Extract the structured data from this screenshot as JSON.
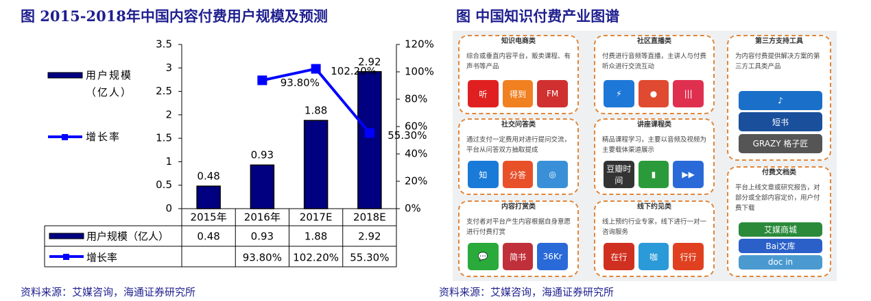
{
  "chart_data": {
    "type": "bar-line",
    "title": "图  2015-2018年中国内容付费用户规模及预测",
    "categories": [
      "2015年",
      "2016年",
      "2017E",
      "2018E"
    ],
    "series": [
      {
        "name": "用户规模（亿人）",
        "type": "bar",
        "color": "#000080",
        "values": [
          0.48,
          0.93,
          1.88,
          2.92
        ]
      },
      {
        "name": "增长率",
        "type": "line",
        "color": "#0000ff",
        "axis": "y2",
        "values": [
          null,
          93.8,
          102.2,
          55.3
        ],
        "value_labels": [
          null,
          "93.80%",
          "102.20%",
          "55.30%"
        ]
      }
    ],
    "ylim": [
      0,
      3.5
    ],
    "yticks": [
      0,
      0.5,
      1,
      1.5,
      2,
      2.5,
      3,
      3.5
    ],
    "y2lim": [
      0,
      120
    ],
    "y2ticks": [
      {
        "value": 0,
        "label": "0%"
      },
      {
        "value": 20,
        "label": "20%"
      },
      {
        "value": 40,
        "label": "40%"
      },
      {
        "value": 60,
        "label": "60%"
      },
      {
        "value": 80,
        "label": "80%"
      },
      {
        "value": 100,
        "label": "100%"
      },
      {
        "value": 120,
        "label": "120%"
      }
    ],
    "data_table": true,
    "source": "资料来源：艾媒咨询，海通证券研究所"
  },
  "diagram": {
    "title": "图  中国知识付费产业图谱",
    "groups": [
      {
        "title": "知识电商类",
        "text": "综合或垂直内容平台，贩卖课程、有声书等产品",
        "logos": [
          "听",
          "得到",
          "FM"
        ]
      },
      {
        "title": "社区直播类",
        "text": "付费进行音频等直播，主讲人与付费听众进行交流互动",
        "logos": [
          "⚡",
          "●",
          "|||"
        ]
      },
      {
        "title": "第三方支持工具",
        "text": "为内容付费提供解决方案的第三方工具类产品",
        "logos": [
          "♪",
          "短书",
          "GRAZY 格子匠"
        ]
      },
      {
        "title": "社交问答类",
        "text": "通过支付一定费用对进行提问交流，平台从问答双方抽取提成",
        "logos": [
          "知",
          "分答",
          "◎"
        ]
      },
      {
        "title": "讲座课程类",
        "text": "精品课程学习，主要以音频及视频为主要载体渠道展示",
        "logos": [
          "豆瓣时间",
          "▮",
          "▶▶"
        ]
      },
      {
        "title": "付费文档类",
        "text": "平台上线文章或研究报告，对部分或全部内容定价，用户付费下载",
        "logos": [
          "艾媒商城",
          "Bai文库",
          "doc in"
        ]
      },
      {
        "title": "内容打赏类",
        "text": "支付者对平台产生内容根据自身意愿进行付费打赏",
        "logos": [
          "💬",
          "简书",
          "36Kr"
        ]
      },
      {
        "title": "线下约见类",
        "text": "线上预约行业专家，线下进行一对一咨询服务",
        "logos": [
          "在行",
          "咖",
          "行行"
        ]
      }
    ],
    "source": "资料来源：艾媒咨询，海通证券研究所"
  }
}
